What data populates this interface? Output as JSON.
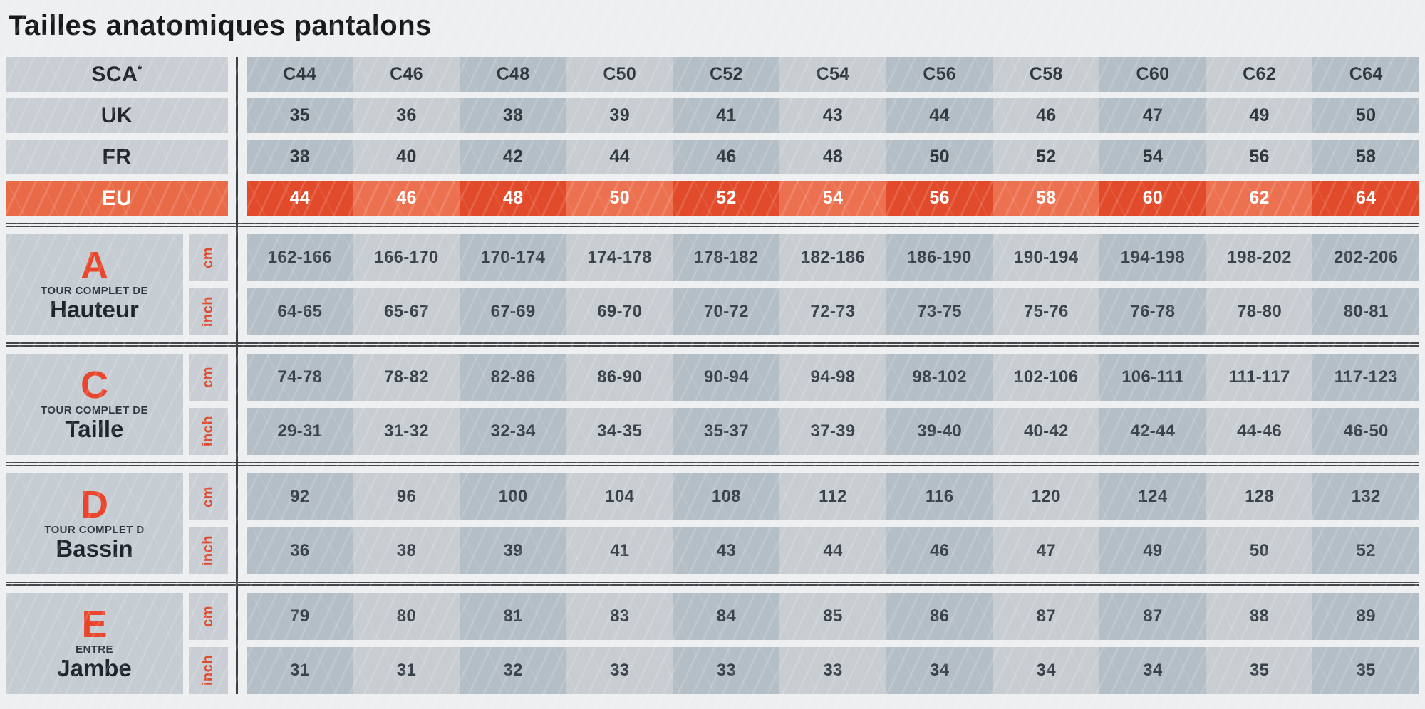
{
  "title": "Tailles anatomiques pantalons",
  "header": {
    "rows": [
      {
        "key": "sca",
        "label": "SCA",
        "asterisk": "*",
        "values": [
          "C44",
          "C46",
          "C48",
          "C50",
          "C52",
          "C54",
          "C56",
          "C58",
          "C60",
          "C62",
          "C64"
        ]
      },
      {
        "key": "uk",
        "label": "UK",
        "values": [
          "35",
          "36",
          "38",
          "39",
          "41",
          "43",
          "44",
          "46",
          "47",
          "49",
          "50"
        ]
      },
      {
        "key": "fr",
        "label": "FR",
        "values": [
          "38",
          "40",
          "42",
          "44",
          "46",
          "48",
          "50",
          "52",
          "54",
          "56",
          "58"
        ]
      },
      {
        "key": "eu",
        "label": "EU",
        "values": [
          "44",
          "46",
          "48",
          "50",
          "52",
          "54",
          "56",
          "58",
          "60",
          "62",
          "64"
        ]
      }
    ]
  },
  "sections": [
    {
      "letter": "A",
      "subtitle": "TOUR COMPLET DE",
      "name": "Hauteur",
      "units": [
        "cm",
        "inch"
      ],
      "cm": [
        "162-166",
        "166-170",
        "170-174",
        "174-178",
        "178-182",
        "182-186",
        "186-190",
        "190-194",
        "194-198",
        "198-202",
        "202-206"
      ],
      "inch": [
        "64-65",
        "65-67",
        "67-69",
        "69-70",
        "70-72",
        "72-73",
        "73-75",
        "75-76",
        "76-78",
        "78-80",
        "80-81"
      ]
    },
    {
      "letter": "C",
      "subtitle": "TOUR COMPLET DE",
      "name": "Taille",
      "units": [
        "cm",
        "inch"
      ],
      "cm": [
        "74-78",
        "78-82",
        "82-86",
        "86-90",
        "90-94",
        "94-98",
        "98-102",
        "102-106",
        "106-111",
        "111-117",
        "117-123"
      ],
      "inch": [
        "29-31",
        "31-32",
        "32-34",
        "34-35",
        "35-37",
        "37-39",
        "39-40",
        "40-42",
        "42-44",
        "44-46",
        "46-50"
      ]
    },
    {
      "letter": "D",
      "subtitle": "TOUR COMPLET D",
      "name": "Bassin",
      "units": [
        "cm",
        "inch"
      ],
      "cm": [
        "92",
        "96",
        "100",
        "104",
        "108",
        "112",
        "116",
        "120",
        "124",
        "128",
        "132"
      ],
      "inch": [
        "36",
        "38",
        "39",
        "41",
        "43",
        "44",
        "46",
        "47",
        "49",
        "50",
        "52"
      ]
    },
    {
      "letter": "E",
      "subtitle": "ENTRE",
      "name": "Jambe",
      "units": [
        "cm",
        "inch"
      ],
      "cm": [
        "79",
        "80",
        "81",
        "83",
        "84",
        "85",
        "86",
        "87",
        "87",
        "88",
        "89"
      ],
      "inch": [
        "31",
        "31",
        "32",
        "33",
        "33",
        "33",
        "34",
        "34",
        "34",
        "35",
        "35"
      ]
    }
  ],
  "colors": {
    "page_background": "#edeff0",
    "cell_dark": "#b4bec6",
    "cell_light": "#c8cdd2",
    "label_cell": "#c8ced4",
    "eu_label": "#e96a47",
    "eu_cell_dark": "#e14a2a",
    "eu_cell_light": "#ec7150",
    "accent_red": "#e8452c",
    "text_dark": "#20262c",
    "divider": "#3c4145"
  }
}
